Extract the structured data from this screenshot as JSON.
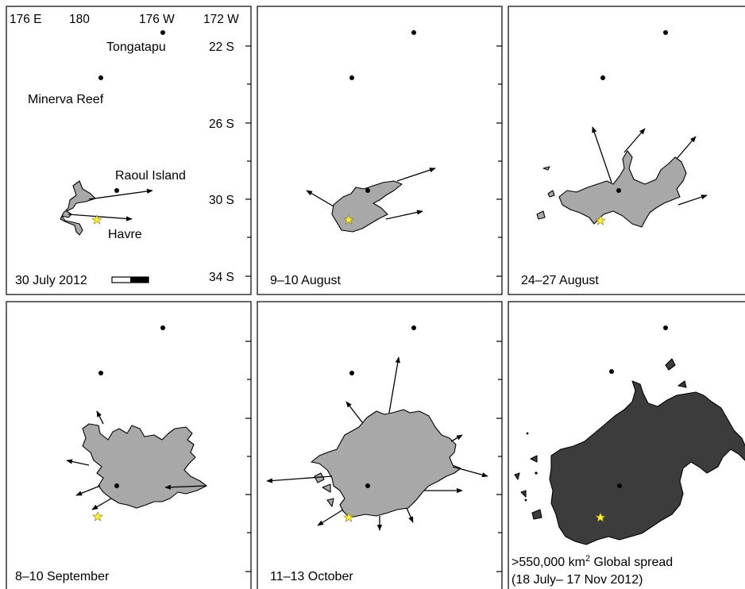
{
  "panels": [
    {
      "date": "30 July 2012"
    },
    {
      "date": "9–10 August"
    },
    {
      "date": "24–27 August"
    },
    {
      "date": "8–10 September"
    },
    {
      "date": "11–13 October"
    },
    {
      "date_line1": ">550,000 km",
      "date_sup": "2",
      "date_line1_rest": " Global spread",
      "date_line2": "(18 July– 17 Nov 2012)"
    }
  ],
  "longitude_labels": [
    "176 E",
    "180",
    "176 W",
    "172 W"
  ],
  "latitude_labels": [
    "22 S",
    "26 S",
    "30 S",
    "34 S"
  ],
  "places": {
    "tongatapu": "Tongatapu",
    "minerva": "Minerva Reef",
    "raoul": "Raoul Island",
    "havre": "Havre"
  },
  "colors": {
    "raft_fill": "#a8a8a8",
    "spread_fill": "#3c3c3c",
    "havre_star": "#ffef3a"
  },
  "icons": {
    "havre": "star-icon",
    "island": "dot-icon",
    "scale": "scale-bar-icon"
  }
}
